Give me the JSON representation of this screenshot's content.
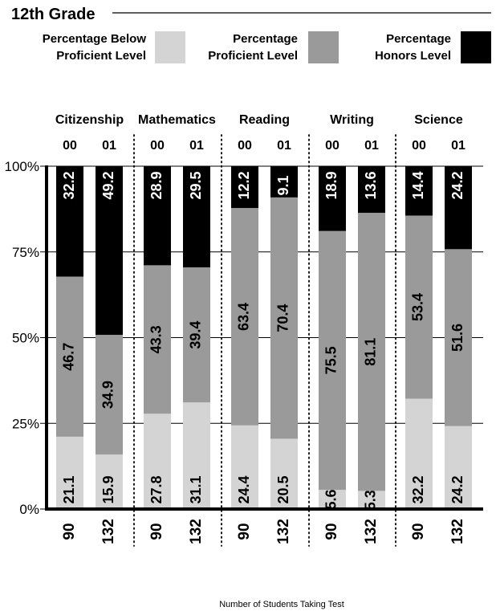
{
  "chart_data": {
    "type": "bar",
    "stacked": true,
    "title": "12th Grade",
    "xlabel": "Number of Students Taking Test",
    "ylim": [
      0,
      100
    ],
    "y_ticks": [
      "0%",
      "25%",
      "50%",
      "75%",
      "100%"
    ],
    "legend": [
      {
        "name": "Percentage Below Proficient Level",
        "line1": "Percentage Below",
        "line2": "Proficient Level",
        "color": "#d4d4d4"
      },
      {
        "name": "Percentage Proficient Level",
        "line1": "Percentage",
        "line2": "Proficient Level",
        "color": "#9a9a9a"
      },
      {
        "name": "Percentage Honors Level",
        "line1": "Percentage",
        "line2": "Honors Level",
        "color": "#000000"
      }
    ],
    "legend_placement": "top",
    "subjects": [
      {
        "name": "Citizenship",
        "bars": [
          {
            "year": "00",
            "students": "90",
            "below": "21.1",
            "proficient": "46.7",
            "honors": "32.2"
          },
          {
            "year": "01",
            "students": "132",
            "below": "15.9",
            "proficient": "34.9",
            "honors": "49.2"
          }
        ]
      },
      {
        "name": "Mathematics",
        "bars": [
          {
            "year": "00",
            "students": "90",
            "below": "27.8",
            "proficient": "43.3",
            "honors": "28.9"
          },
          {
            "year": "01",
            "students": "132",
            "below": "31.1",
            "proficient": "39.4",
            "honors": "29.5"
          }
        ]
      },
      {
        "name": "Reading",
        "bars": [
          {
            "year": "00",
            "students": "90",
            "below": "24.4",
            "proficient": "63.4",
            "honors": "12.2"
          },
          {
            "year": "01",
            "students": "132",
            "below": "20.5",
            "proficient": "70.4",
            "honors": "9.1"
          }
        ]
      },
      {
        "name": "Writing",
        "bars": [
          {
            "year": "00",
            "students": "90",
            "below": "5.6",
            "proficient": "75.5",
            "honors": "18.9"
          },
          {
            "year": "01",
            "students": "132",
            "below": "5.3",
            "proficient": "81.1",
            "honors": "13.6"
          }
        ]
      },
      {
        "name": "Science",
        "bars": [
          {
            "year": "00",
            "students": "90",
            "below": "32.2",
            "proficient": "53.4",
            "honors": "14.4"
          },
          {
            "year": "01",
            "students": "132",
            "below": "24.2",
            "proficient": "51.6",
            "honors": "24.2"
          }
        ]
      }
    ]
  }
}
